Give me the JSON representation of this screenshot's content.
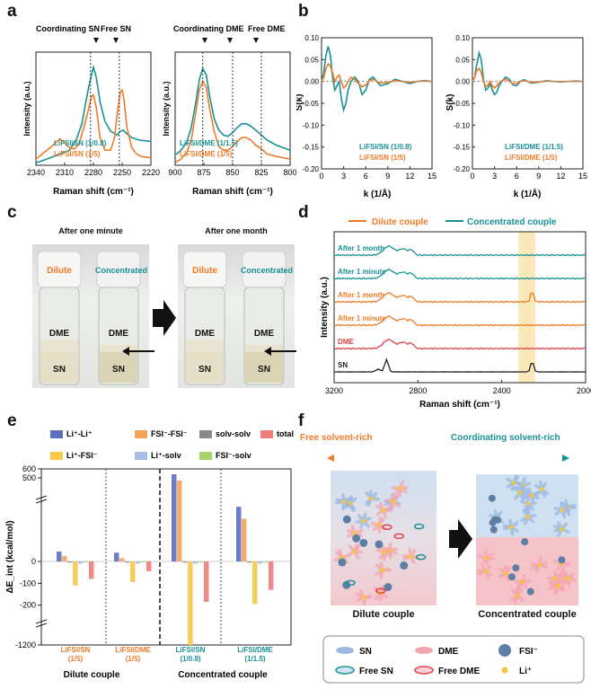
{
  "panels": {
    "a": "a",
    "b": "b",
    "c": "c",
    "d": "d",
    "e": "e",
    "f": "f"
  },
  "colors": {
    "teal": "#1a9195",
    "orange": "#f07b27",
    "red": "#e0424b",
    "black": "#222222",
    "blue": "#5a6fc0",
    "lightorange": "#f5a35a",
    "gray": "#8a8a8a",
    "salmon": "#f07c7c",
    "yellow": "#f7c84a",
    "lightblue": "#a9bde8",
    "green": "#a8d36b"
  },
  "chart_data": [
    {
      "id": "a-left",
      "type": "line",
      "xlabel": "Raman shift (cm⁻¹)",
      "ylabel": "Intensity (a.u.)",
      "xlim": [
        2340,
        2220
      ],
      "xticks": [
        "2340",
        "2310",
        "2280",
        "2250",
        "2220"
      ],
      "annotations": [
        "Coordinating SN",
        "Free SN"
      ],
      "legend": [
        "LiFSI/SN (1/0.8)",
        "LiFSI/SN (1/5)"
      ],
      "series": [
        {
          "name": "LiFSI/SN (1/0.8)",
          "x": [
            2340,
            2325,
            2315,
            2305,
            2298,
            2292,
            2288,
            2285,
            2282,
            2280,
            2277,
            2273,
            2268,
            2262,
            2255,
            2252,
            2249,
            2245,
            2240,
            2232,
            2220
          ],
          "y": [
            0.02,
            0.06,
            0.09,
            0.12,
            0.2,
            0.33,
            0.5,
            0.62,
            0.72,
            0.78,
            0.7,
            0.5,
            0.35,
            0.27,
            0.24,
            0.27,
            0.28,
            0.25,
            0.22,
            0.2,
            0.19
          ]
        },
        {
          "name": "LiFSI/SN (1/5)",
          "x": [
            2340,
            2325,
            2315,
            2310,
            2305,
            2300,
            2295,
            2290,
            2285,
            2282,
            2280,
            2277,
            2273,
            2268,
            2262,
            2258,
            2255,
            2252,
            2250,
            2248,
            2245,
            2240,
            2235,
            2230,
            2220
          ],
          "y": [
            0.05,
            0.14,
            0.21,
            0.18,
            0.14,
            0.13,
            0.17,
            0.3,
            0.45,
            0.55,
            0.56,
            0.46,
            0.22,
            0.12,
            0.12,
            0.22,
            0.42,
            0.58,
            0.6,
            0.52,
            0.3,
            0.14,
            0.09,
            0.07,
            0.06
          ]
        }
      ]
    },
    {
      "id": "a-right",
      "type": "line",
      "xlabel": "Raman shift (cm⁻¹)",
      "ylabel": "Intensity (a.u.)",
      "xlim": [
        900,
        800
      ],
      "xticks": [
        "900",
        "875",
        "850",
        "825",
        "800"
      ],
      "annotations": [
        "Coordinating DME",
        "Free DME"
      ],
      "legend": [
        "LiFSI/DME (1/1.5)",
        "LiFSI/DME (1/5)"
      ],
      "series": [
        {
          "name": "LiFSI/DME (1/1.5)",
          "x": [
            900,
            895,
            890,
            886,
            882,
            879,
            876,
            873,
            870,
            866,
            862,
            858,
            854,
            850,
            846,
            842,
            838,
            834,
            830,
            825,
            820,
            812,
            800
          ],
          "y": [
            0.08,
            0.12,
            0.18,
            0.3,
            0.5,
            0.68,
            0.77,
            0.72,
            0.55,
            0.37,
            0.28,
            0.24,
            0.23,
            0.26,
            0.3,
            0.33,
            0.33,
            0.31,
            0.28,
            0.24,
            0.2,
            0.16,
            0.12
          ]
        },
        {
          "name": "LiFSI/DME (1/5)",
          "x": [
            900,
            895,
            890,
            886,
            882,
            879,
            876,
            873,
            870,
            866,
            862,
            858,
            854,
            850,
            846,
            842,
            838,
            834,
            830,
            825,
            820,
            812,
            800
          ],
          "y": [
            0.02,
            0.05,
            0.1,
            0.2,
            0.42,
            0.6,
            0.67,
            0.62,
            0.45,
            0.27,
            0.15,
            0.12,
            0.12,
            0.15,
            0.19,
            0.22,
            0.22,
            0.2,
            0.16,
            0.13,
            0.09,
            0.07,
            0.05
          ]
        }
      ]
    },
    {
      "id": "b-left",
      "type": "line",
      "xlabel": "k (1/Å)",
      "ylabel": "S(k)",
      "xlim": [
        0,
        15
      ],
      "ylim": [
        -0.2,
        0.1
      ],
      "xticks": [
        "0",
        "3",
        "6",
        "9",
        "12",
        "15"
      ],
      "yticks": [
        "0.10",
        "0.05",
        "0.00",
        "-0.05",
        "-0.10",
        "-0.15",
        "-0.20"
      ],
      "legend": [
        "LiFSI/SN (1/0.8)",
        "LiFSI/SN (1/5)"
      ],
      "series": [
        {
          "name": "LiFSI/SN (1/0.8)",
          "x": [
            0,
            0.3,
            0.6,
            0.9,
            1.2,
            1.5,
            1.8,
            2.1,
            2.4,
            2.7,
            3,
            3.3,
            3.6,
            4,
            4.5,
            5,
            5.5,
            6,
            6.5,
            7,
            7.5,
            8,
            9,
            10,
            11,
            12,
            13,
            14,
            15
          ],
          "y": [
            0,
            0.02,
            0.06,
            0.08,
            0.06,
            0.01,
            -0.02,
            -0.01,
            0.0,
            -0.04,
            -0.065,
            -0.05,
            -0.02,
            0.0,
            0.01,
            0.0,
            -0.03,
            -0.02,
            0.005,
            0.01,
            0.0,
            -0.01,
            -0.005,
            0.005,
            0.0,
            -0.005,
            0.0,
            0.002,
            0.0
          ]
        },
        {
          "name": "LiFSI/SN (1/5)",
          "x": [
            0,
            0.3,
            0.6,
            0.9,
            1.2,
            1.5,
            1.8,
            2.1,
            2.4,
            2.7,
            3,
            3.3,
            3.6,
            4,
            4.5,
            5,
            5.5,
            6,
            6.5,
            7,
            7.5,
            8,
            9,
            10,
            11,
            12,
            13,
            14,
            15
          ],
          "y": [
            0,
            0.01,
            0.03,
            0.04,
            0.035,
            0.02,
            0.0,
            0.01,
            0.015,
            0.0,
            -0.015,
            -0.01,
            0.0,
            0.01,
            0.005,
            -0.005,
            -0.012,
            -0.008,
            0.002,
            0.005,
            0.0,
            -0.004,
            -0.002,
            0.002,
            0.0,
            -0.002,
            0.0,
            0.001,
            0.0
          ]
        }
      ]
    },
    {
      "id": "b-right",
      "type": "line",
      "xlabel": "k (1/Å)",
      "ylabel": "S(k)",
      "xlim": [
        0,
        15
      ],
      "ylim": [
        -0.2,
        0.1
      ],
      "xticks": [
        "0",
        "3",
        "6",
        "9",
        "12",
        "15"
      ],
      "yticks": [
        "0.10",
        "0.05",
        "0.00",
        "-0.05",
        "-0.10",
        "-0.15",
        "-0.20"
      ],
      "legend": [
        "LiFSI/DME (1/1.5)",
        "LiFSI/DME (1/5)"
      ],
      "series": [
        {
          "name": "LiFSI/DME (1/1.5)",
          "x": [
            0,
            0.3,
            0.6,
            0.9,
            1.2,
            1.5,
            1.8,
            2.1,
            2.4,
            2.7,
            3,
            3.3,
            3.6,
            4,
            4.5,
            5,
            5.5,
            6,
            6.5,
            7,
            7.5,
            8,
            9,
            10,
            11,
            12,
            13,
            14,
            15
          ],
          "y": [
            0,
            0.01,
            0.04,
            0.065,
            0.05,
            0.005,
            -0.02,
            -0.015,
            -0.005,
            -0.02,
            -0.03,
            -0.025,
            -0.01,
            0.0,
            0.01,
            0.005,
            -0.008,
            -0.01,
            0.0,
            0.004,
            0.0,
            -0.004,
            -0.002,
            0.002,
            0.0,
            -0.001,
            0.0,
            0.001,
            0.0
          ]
        },
        {
          "name": "LiFSI/DME (1/5)",
          "x": [
            0,
            0.3,
            0.6,
            0.9,
            1.2,
            1.5,
            1.8,
            2.1,
            2.4,
            2.7,
            3,
            3.3,
            3.6,
            4,
            4.5,
            5,
            5.5,
            6,
            6.5,
            7,
            7.5,
            8,
            9,
            10,
            11,
            12,
            13,
            14,
            15
          ],
          "y": [
            0,
            0.01,
            0.025,
            0.03,
            0.02,
            0.0,
            -0.012,
            -0.008,
            0.0,
            -0.01,
            -0.015,
            -0.01,
            -0.003,
            0.002,
            0.005,
            0.0,
            -0.005,
            -0.004,
            0.0,
            0.002,
            0.0,
            -0.002,
            -0.001,
            0.001,
            0.0,
            0.0,
            0.0,
            0.0,
            0.0
          ]
        }
      ]
    },
    {
      "id": "d",
      "type": "line",
      "xlabel": "Raman shift (cm⁻¹)",
      "ylabel": "Intensity (a.u.)",
      "xlim": [
        3200,
        2000
      ],
      "xticks": [
        "3200",
        "2800",
        "2400",
        "2000"
      ],
      "legend": [
        "Dilute couple",
        "Concentrated couple"
      ],
      "highlight_range": [
        2320,
        2240
      ],
      "traces": [
        {
          "label": "After 1 month",
          "group": "Concentrated couple",
          "has_peak": false
        },
        {
          "label": "After 1 minute",
          "group": "Concentrated couple",
          "has_peak": false
        },
        {
          "label": "After 1 month",
          "group": "Dilute couple",
          "has_peak": true
        },
        {
          "label": "After 1 minute",
          "group": "Dilute couple",
          "has_peak": false
        },
        {
          "label": "DME",
          "group": "DME",
          "has_peak": false
        },
        {
          "label": "SN",
          "group": "SN",
          "has_peak": true
        }
      ]
    },
    {
      "id": "e",
      "type": "bar",
      "ylabel": "ΔE_int (kcal/mol)",
      "yticks": [
        "600",
        "500",
        "0",
        "-100",
        "-200",
        "-1200"
      ],
      "legend": [
        "Li⁺-Li⁺",
        "FSI⁻-FSI⁻",
        "solv-solv",
        "total",
        "Li⁺-FSI⁻",
        "Li⁺-solv",
        "FSI⁻-solv"
      ],
      "categories": [
        "LiFSI/SN (1/5)",
        "LiFSI/DME (1/5)",
        "LiFSI/SN (1/0.8)",
        "LiFSI/DME (1/1.5)"
      ],
      "groups": [
        "Dilute couple",
        "Dilute couple",
        "Concentrated couple",
        "Concentrated couple"
      ],
      "series": [
        {
          "name": "Li⁺-Li⁺",
          "values": [
            45,
            40,
            540,
            250
          ]
        },
        {
          "name": "FSI⁻-FSI⁻",
          "values": [
            25,
            15,
            470,
            195
          ]
        },
        {
          "name": "solv-solv",
          "values": [
            -5,
            -5,
            -5,
            -5
          ]
        },
        {
          "name": "Li⁺-FSI⁻",
          "values": [
            -110,
            -95,
            -1200,
            -195
          ]
        },
        {
          "name": "Li⁺-solv",
          "values": [
            -10,
            -10,
            -10,
            -10
          ]
        },
        {
          "name": "FSI⁻-solv",
          "values": [
            -3,
            -3,
            -3,
            -3
          ]
        },
        {
          "name": "total",
          "values": [
            -80,
            -45,
            -185,
            -130
          ]
        }
      ]
    }
  ],
  "panel_c": {
    "title_left": "After one minute",
    "title_right": "After one month",
    "vial_labels": [
      "Dilute",
      "Concentrated",
      "Dilute",
      "Concentrated"
    ],
    "layers": {
      "dme": "DME",
      "sn": "SN"
    }
  },
  "panel_d": {
    "legend_dilute": "Dilute couple",
    "legend_conc": "Concentrated couple"
  },
  "panel_e": {
    "group_dilute": "Dilute couple",
    "group_conc": "Concentrated couple",
    "cat_labels": [
      [
        "LiFSI/SN",
        "(1/5)"
      ],
      [
        "LiFSI/DME",
        "(1/5)"
      ],
      [
        "LiFSI/SN",
        "(1/0.8)"
      ],
      [
        "LiFSI/DME",
        "(1/1.5)"
      ]
    ]
  },
  "panel_f": {
    "arrow_left": "Free solvent-rich",
    "arrow_right": "Coordinating solvent-rich",
    "caption_left": "Dilute couple",
    "caption_right": "Concentrated couple",
    "legend": [
      "SN",
      "DME",
      "FSI⁻",
      "Free SN",
      "Free DME",
      "Li⁺"
    ]
  }
}
